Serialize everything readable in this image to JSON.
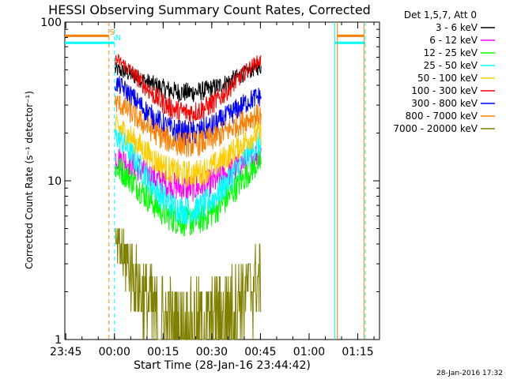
{
  "chart_data": {
    "type": "line",
    "title": "HESSI Observing Summary Count Rates, Corrected",
    "ylabel": "Corrected Count Rate (s⁻¹ detector⁻¹)",
    "xlabel": "Start Time (28-Jan-16 23:44:42)",
    "yscale": "log",
    "ylim": [
      1,
      100
    ],
    "xlim_minutes": [
      0,
      97
    ],
    "y_ticks": [
      {
        "label": "1",
        "value": 1
      },
      {
        "label": "10",
        "value": 10
      },
      {
        "label": "100",
        "value": 100
      }
    ],
    "x_ticks": [
      {
        "label": "23:45",
        "minute": 0.3
      },
      {
        "label": "00:00",
        "minute": 15.3
      },
      {
        "label": "00:15",
        "minute": 30.3
      },
      {
        "label": "00:30",
        "minute": 45.3
      },
      {
        "label": "00:45",
        "minute": 60.3
      },
      {
        "label": "01:00",
        "minute": 75.3
      },
      {
        "label": "01:15",
        "minute": 90.3
      }
    ],
    "legend_title": "Det 1,5,7, Att 0",
    "legend_placement": "right",
    "series": [
      {
        "name": "3 - 6 keV",
        "color": "#000000",
        "start": 50,
        "min": 36,
        "end": 52
      },
      {
        "name": "6 - 12 keV",
        "color": "#ff00ff",
        "start": 14,
        "min": 9,
        "end": 15
      },
      {
        "name": "12 - 25 keV",
        "color": "#00ff00",
        "start": 12,
        "min": 5.5,
        "end": 13
      },
      {
        "name": "25 - 50 keV",
        "color": "#00ffff",
        "start": 19,
        "min": 6.5,
        "end": 17
      },
      {
        "name": "50 - 100 keV",
        "color": "#ffcc00",
        "start": 22,
        "min": 11,
        "end": 20
      },
      {
        "name": "100 - 300 keV",
        "color": "#ff0000",
        "start": 58,
        "min": 27,
        "end": 57
      },
      {
        "name": "300 - 800 keV",
        "color": "#0000ff",
        "start": 41,
        "min": 20,
        "end": 34
      },
      {
        "name": "800 - 7000 keV",
        "color": "#ff8000",
        "start": 31,
        "min": 17,
        "end": 26
      },
      {
        "name": "7000 - 20000 keV",
        "color": "#808000",
        "start": 4,
        "min": 1,
        "end": 2.5
      }
    ],
    "data_window_minutes": [
      15.5,
      60.5
    ],
    "markers": [
      {
        "label": "S",
        "color": "#ff8000",
        "minute": 13.6
      },
      {
        "label": "N",
        "color": "#00ffff",
        "minute": 15.3
      }
    ],
    "marker_lines": [
      {
        "minute": 13.6,
        "color": "#ff8000",
        "style": "dashed"
      },
      {
        "minute": 15.3,
        "color": "#00ffff",
        "style": "dashed"
      },
      {
        "minute": 83.2,
        "color": "#00ffff",
        "style": "solid"
      },
      {
        "minute": 84.0,
        "color": "#ff8000",
        "style": "solid"
      },
      {
        "minute": 92.2,
        "color": "#ff8000",
        "style": "solid"
      },
      {
        "minute": 92.6,
        "color": "#00ffff",
        "style": "dashed"
      }
    ],
    "flag_bars": [
      {
        "color": "#ff8000",
        "value": 82,
        "from": 0,
        "to": 13.6
      },
      {
        "color": "#00ffff",
        "value": 74,
        "from": 0,
        "to": 15.3
      },
      {
        "color": "#ff8000",
        "value": 82,
        "from": 84.0,
        "to": 92.2
      },
      {
        "color": "#00ffff",
        "value": 74,
        "from": 83.2,
        "to": 92.6
      }
    ]
  },
  "footer": {
    "timestamp": "28-Jan-2016 17:32"
  }
}
